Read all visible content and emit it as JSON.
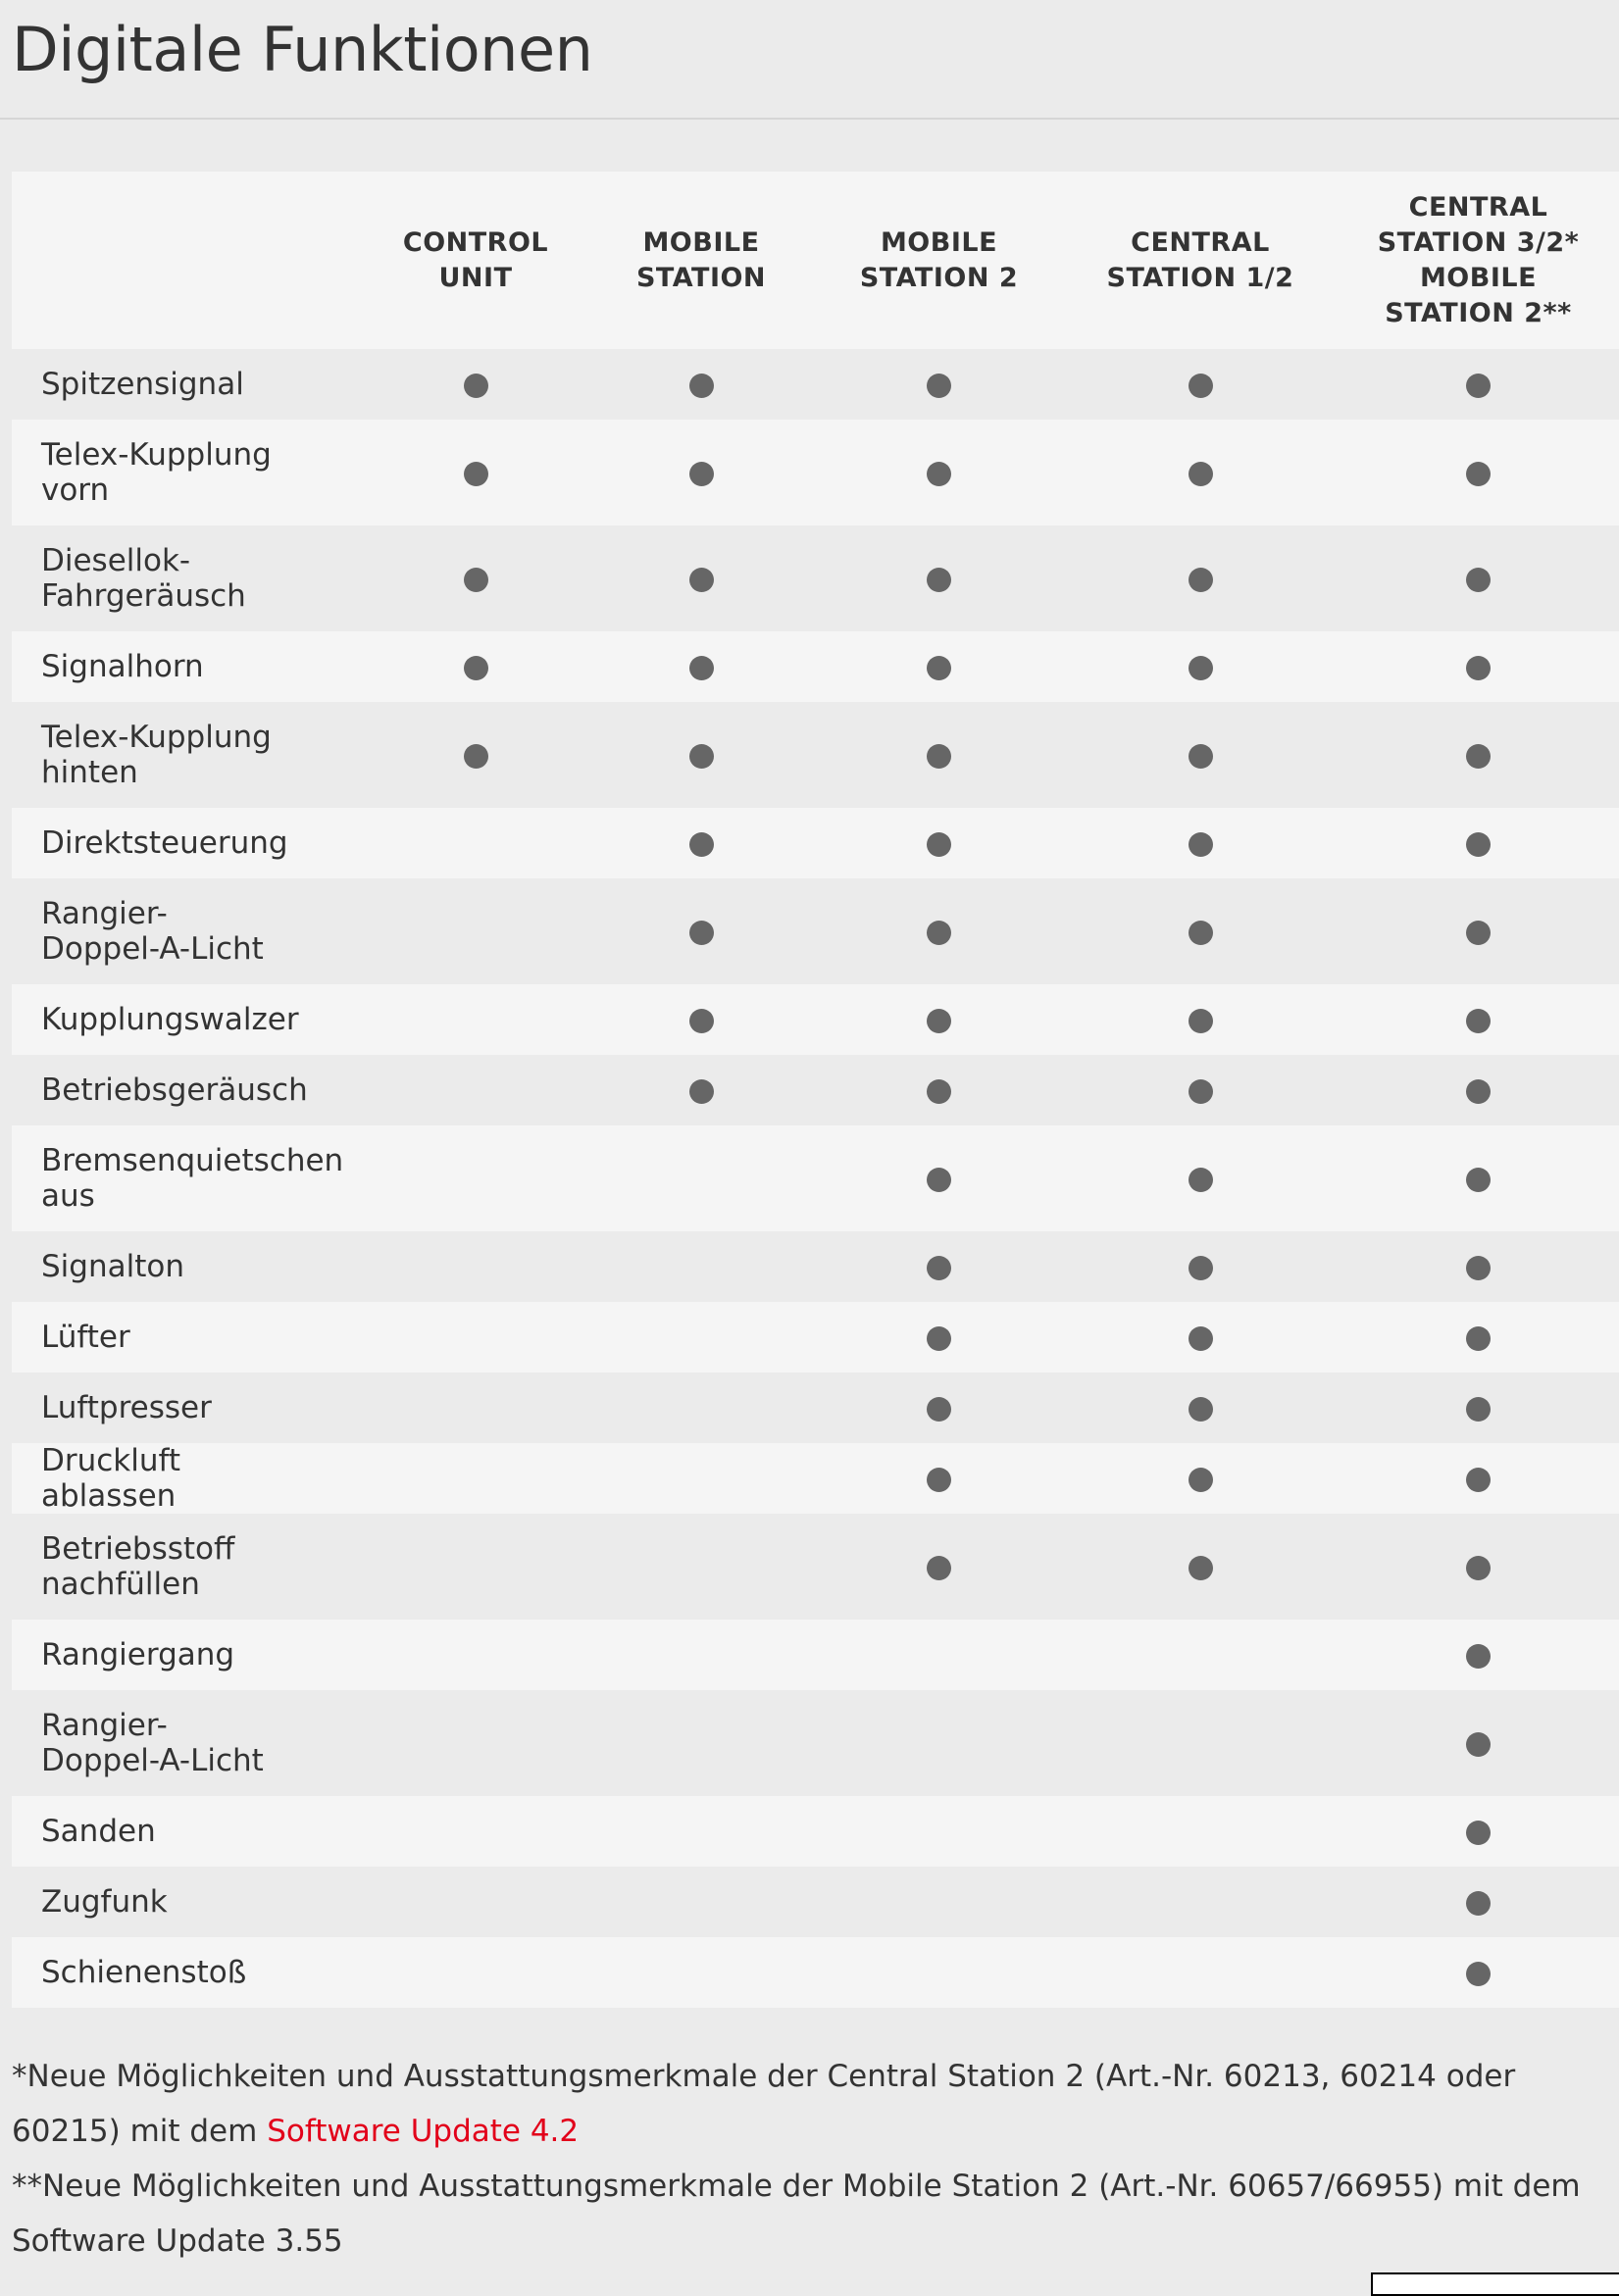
{
  "title": "Digitale Funktionen",
  "table": {
    "columns": [
      [
        "CONTROL",
        "UNIT"
      ],
      [
        "MOBILE",
        "STATION"
      ],
      [
        "MOBILE",
        "STATION 2"
      ],
      [
        "CENTRAL",
        "STATION 1/2"
      ],
      [
        "CENTRAL",
        "STATION 3/2*",
        "MOBILE",
        "STATION 2**"
      ]
    ],
    "rows": [
      {
        "name": "Spitzensignal",
        "lines": 1,
        "support": [
          true,
          true,
          true,
          true,
          true
        ]
      },
      {
        "name": "Telex-Kupplung vorn",
        "lines": 2,
        "support": [
          true,
          true,
          true,
          true,
          true
        ]
      },
      {
        "name": "Diesellok-Fahrgeräusch",
        "lines": 2,
        "support": [
          true,
          true,
          true,
          true,
          true
        ]
      },
      {
        "name": "Signalhorn",
        "lines": 1,
        "support": [
          true,
          true,
          true,
          true,
          true
        ]
      },
      {
        "name": "Telex-Kupplung hinten",
        "lines": 2,
        "support": [
          true,
          true,
          true,
          true,
          true
        ]
      },
      {
        "name": "Direktsteuerung",
        "lines": 1,
        "support": [
          false,
          true,
          true,
          true,
          true
        ]
      },
      {
        "name": "Rangier-Doppel-A-Licht",
        "lines": 2,
        "support": [
          false,
          true,
          true,
          true,
          true
        ]
      },
      {
        "name": "Kupplungswalzer",
        "lines": 1,
        "support": [
          false,
          true,
          true,
          true,
          true
        ]
      },
      {
        "name": "Betriebsgeräusch",
        "lines": 1,
        "support": [
          false,
          true,
          true,
          true,
          true
        ]
      },
      {
        "name": "Bremsenquietschen aus",
        "lines": 2,
        "support": [
          false,
          false,
          true,
          true,
          true
        ]
      },
      {
        "name": "Signalton",
        "lines": 1,
        "support": [
          false,
          false,
          true,
          true,
          true
        ]
      },
      {
        "name": "Lüfter",
        "lines": 1,
        "support": [
          false,
          false,
          true,
          true,
          true
        ]
      },
      {
        "name": "Luftpresser",
        "lines": 1,
        "support": [
          false,
          false,
          true,
          true,
          true
        ]
      },
      {
        "name": "Druckluft ablassen",
        "lines": 1,
        "support": [
          false,
          false,
          true,
          true,
          true
        ]
      },
      {
        "name": "Betriebsstoff nachfüllen",
        "lines": 2,
        "support": [
          false,
          false,
          true,
          true,
          true
        ]
      },
      {
        "name": "Rangiergang",
        "lines": 1,
        "support": [
          false,
          false,
          false,
          false,
          true
        ]
      },
      {
        "name": "Rangier-Doppel-A-Licht",
        "lines": 2,
        "support": [
          false,
          false,
          false,
          false,
          true
        ]
      },
      {
        "name": "Sanden",
        "lines": 1,
        "support": [
          false,
          false,
          false,
          false,
          true
        ]
      },
      {
        "name": "Zugfunk",
        "lines": 1,
        "support": [
          false,
          false,
          false,
          false,
          true
        ]
      },
      {
        "name": "Schienenstoß",
        "lines": 1,
        "support": [
          false,
          false,
          false,
          false,
          true
        ]
      }
    ],
    "dot_color": "#666666"
  },
  "footnotes": {
    "note1_text": "*Neue Möglichkeiten und Ausstattungsmerkmale der Central Station 2 (Art.-Nr. 60213, 60214 oder 60215) mit dem ",
    "note1_link": "Software Update 4.2",
    "note2_text": "**Neue Möglichkeiten und Ausstattungsmerkmale der Mobile Station 2 (Art.-Nr. 60657/66955) mit dem Software Update 3.55",
    "link_color": "#e2001a"
  }
}
